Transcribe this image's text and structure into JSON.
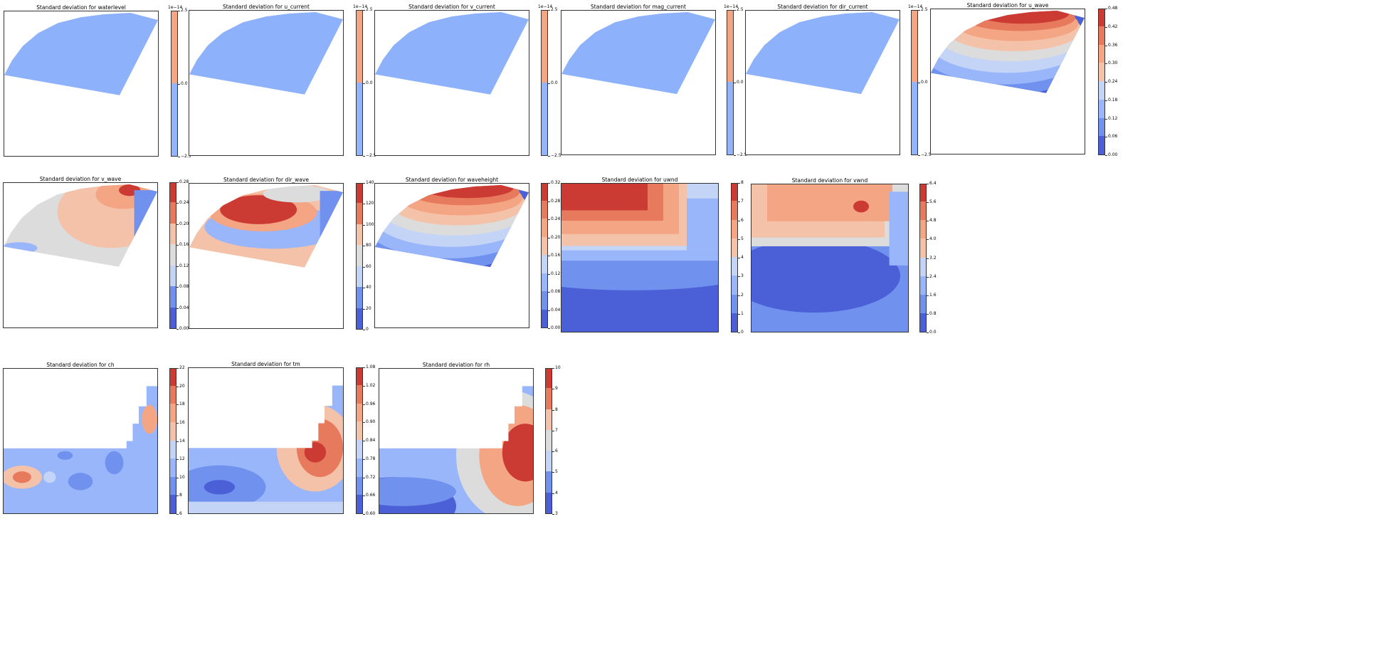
{
  "palette": [
    "#4b5fd6",
    "#7092ee",
    "#9ab6fb",
    "#c3d4f7",
    "#dcdcdc",
    "#f4c2a8",
    "#f3a584",
    "#e77a5c",
    "#cc3b33"
  ],
  "chart_data": [
    {
      "type": "heatmap",
      "title": "Standard deviation for waterlevel",
      "offset": "1e−14",
      "ticks": [
        "2.5",
        "0.0",
        "−2.5"
      ],
      "levels": [
        -2.5,
        0,
        2.5
      ],
      "cb_colors": [
        "#93b4fc",
        "#f3a584"
      ],
      "shape": "domain",
      "field": "uniform"
    },
    {
      "type": "heatmap",
      "title": "Standard deviation for u_current",
      "offset": "1e−14",
      "ticks": [
        "2.5",
        "0.0",
        "−2.5"
      ],
      "levels": [
        -2.5,
        0,
        2.5
      ],
      "cb_colors": [
        "#93b4fc",
        "#f3a584"
      ],
      "shape": "domain",
      "field": "uniform"
    },
    {
      "type": "heatmap",
      "title": "Standard deviation for v_current",
      "offset": "1e−14",
      "ticks": [
        "2.5",
        "0.0",
        "−2.5"
      ],
      "levels": [
        -2.5,
        0,
        2.5
      ],
      "cb_colors": [
        "#93b4fc",
        "#f3a584"
      ],
      "shape": "domain",
      "field": "uniform"
    },
    {
      "type": "heatmap",
      "title": "Standard deviation for mag_current",
      "offset": "1e−14",
      "ticks": [
        "2.5",
        "0.0",
        "−2.5"
      ],
      "levels": [
        -2.5,
        0,
        2.5
      ],
      "cb_colors": [
        "#93b4fc",
        "#f3a584"
      ],
      "shape": "domain",
      "field": "uniform"
    },
    {
      "type": "heatmap",
      "title": "Standard deviation for dir_current",
      "offset": "1e−14",
      "ticks": [
        "2.5",
        "0.0",
        "−2.5"
      ],
      "levels": [
        -2.5,
        0,
        2.5
      ],
      "cb_colors": [
        "#93b4fc",
        "#f3a584"
      ],
      "shape": "domain",
      "field": "uniform"
    },
    {
      "type": "heatmap",
      "title": "Standard deviation for u_wave",
      "offset": "",
      "ticks": [
        "0.48",
        "0.42",
        "0.36",
        "0.30",
        "0.24",
        "0.18",
        "0.12",
        "0.06",
        "0.00"
      ],
      "levels": [
        0,
        0.06,
        0.12,
        0.18,
        0.24,
        0.3,
        0.36,
        0.42,
        0.48
      ],
      "shape": "domain",
      "field": "bands_top"
    },
    {
      "type": "heatmap",
      "title": "Standard deviation for v_wave",
      "offset": "",
      "ticks": [
        "0.28",
        "0.24",
        "0.20",
        "0.16",
        "0.12",
        "0.08",
        "0.04",
        "0.00"
      ],
      "levels": [
        0,
        0.04,
        0.08,
        0.12,
        0.16,
        0.2,
        0.24,
        0.28
      ],
      "shape": "domain",
      "field": "vwave"
    },
    {
      "type": "heatmap",
      "title": "Standard deviation for dir_wave",
      "offset": "",
      "ticks": [
        "140",
        "120",
        "100",
        "80",
        "60",
        "40",
        "20",
        "0"
      ],
      "levels": [
        0,
        20,
        40,
        60,
        80,
        100,
        120,
        140
      ],
      "shape": "domain",
      "field": "dirwave"
    },
    {
      "type": "heatmap",
      "title": "Standard deviation for waveheight",
      "offset": "",
      "ticks": [
        "0.32",
        "0.28",
        "0.24",
        "0.20",
        "0.16",
        "0.12",
        "0.08",
        "0.04",
        "0.00"
      ],
      "levels": [
        0,
        0.04,
        0.08,
        0.12,
        0.16,
        0.2,
        0.24,
        0.28,
        0.32
      ],
      "shape": "domain",
      "field": "bands_top"
    },
    {
      "type": "heatmap",
      "title": "Standard deviation for uwnd",
      "offset": "",
      "ticks": [
        "8",
        "7",
        "6",
        "5",
        "4",
        "3",
        "2",
        "1",
        "0"
      ],
      "levels": [
        0,
        1,
        2,
        3,
        4,
        5,
        6,
        7,
        8
      ],
      "shape": "full",
      "field": "uwnd"
    },
    {
      "type": "heatmap",
      "title": "Standard deviation for vwnd",
      "offset": "",
      "ticks": [
        "6.4",
        "5.6",
        "4.8",
        "4.0",
        "3.2",
        "2.4",
        "1.6",
        "0.8",
        "0.0"
      ],
      "levels": [
        0,
        0.8,
        1.6,
        2.4,
        3.2,
        4.0,
        4.8,
        5.6,
        6.4
      ],
      "shape": "full",
      "field": "vwnd"
    },
    {
      "type": "heatmap",
      "title": "Standard deviation for ch",
      "offset": "",
      "ticks": [
        "22",
        "20",
        "18",
        "16",
        "14",
        "12",
        "10",
        "8",
        "6"
      ],
      "levels": [
        6,
        8,
        10,
        12,
        14,
        16,
        18,
        20,
        22
      ],
      "shape": "land",
      "field": "ch"
    },
    {
      "type": "heatmap",
      "title": "Standard deviation for tm",
      "offset": "",
      "ticks": [
        "1.08",
        "1.02",
        "0.96",
        "0.90",
        "0.84",
        "0.78",
        "0.72",
        "0.66",
        "0.60"
      ],
      "levels": [
        0.6,
        0.66,
        0.72,
        0.78,
        0.84,
        0.9,
        0.96,
        1.02,
        1.08
      ],
      "shape": "land",
      "field": "tm"
    },
    {
      "type": "heatmap",
      "title": "Standard deviation for rh",
      "offset": "",
      "ticks": [
        "10",
        "9",
        "8",
        "7",
        "6",
        "5",
        "4",
        "3"
      ],
      "levels": [
        3,
        4,
        5,
        6,
        7,
        8,
        9,
        10
      ],
      "shape": "land",
      "field": "rh"
    }
  ]
}
